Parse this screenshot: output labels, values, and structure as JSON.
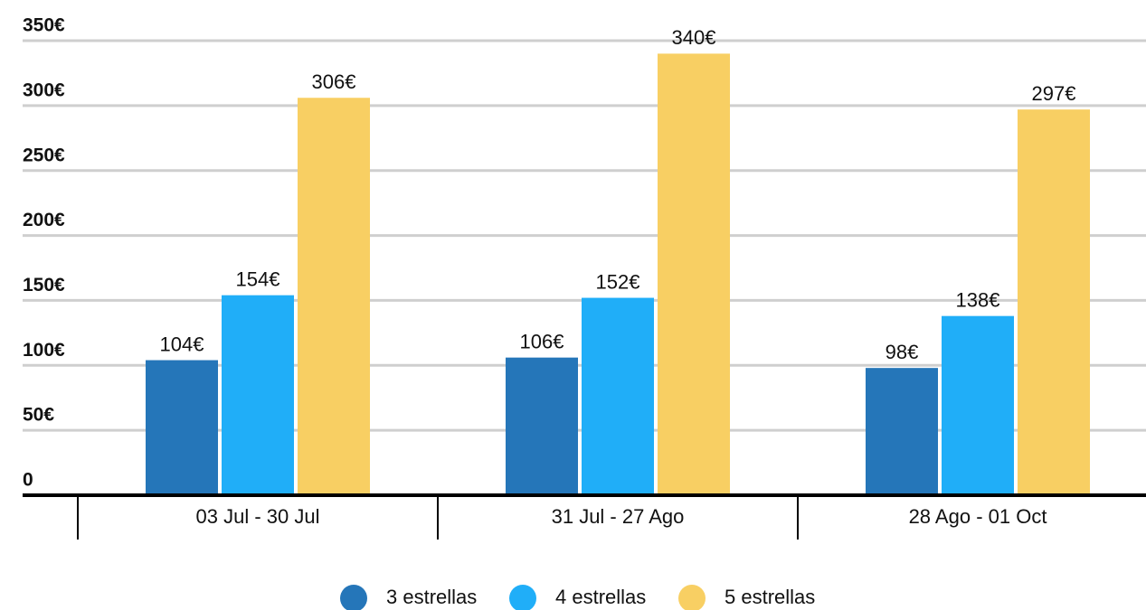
{
  "chart_data": {
    "type": "bar",
    "categories": [
      "03 Jul - 30 Jul",
      "31 Jul - 27 Ago",
      "28 Ago - 01 Oct"
    ],
    "series": [
      {
        "name": "3 estrellas",
        "color": "#2576b9",
        "values": [
          104,
          106,
          98
        ],
        "value_labels": [
          "104€",
          "106€",
          "98€"
        ]
      },
      {
        "name": "4 estrellas",
        "color": "#20aef8",
        "values": [
          154,
          152,
          138
        ],
        "value_labels": [
          "154€",
          "152€",
          "138€"
        ]
      },
      {
        "name": "5 estrellas",
        "color": "#f8cf63",
        "values": [
          306,
          340,
          297
        ],
        "value_labels": [
          "306€",
          "340€",
          "297€"
        ]
      }
    ],
    "ylim": [
      0,
      350
    ],
    "yticks": [
      0,
      {
        "value": 50,
        "label": "50€"
      },
      {
        "value": 100,
        "label": "100€"
      },
      {
        "value": 150,
        "label": "150€"
      },
      {
        "value": 200,
        "label": "200€"
      },
      {
        "value": 250,
        "label": "250€"
      },
      {
        "value": 300,
        "label": "300€"
      },
      {
        "value": 350,
        "label": "350€"
      }
    ],
    "grid": true,
    "legend": "bottom"
  }
}
